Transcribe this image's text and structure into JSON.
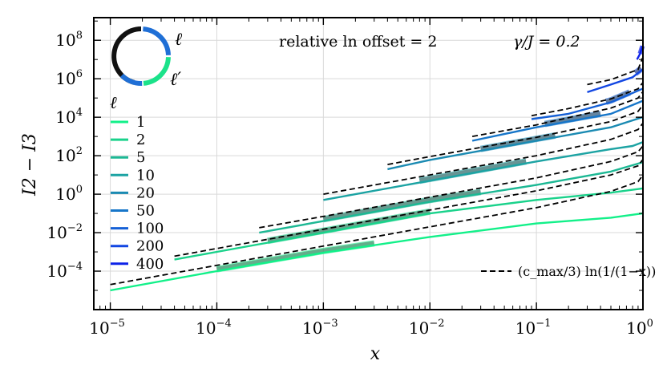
{
  "chart_data": {
    "type": "line",
    "xlabel": "x",
    "ylabel": "I2 − I3",
    "xscale": "log",
    "yscale": "log",
    "xlim": [
      7e-06,
      1.0
    ],
    "ylim": [
      1e-06,
      1500000000.0
    ],
    "grid": true,
    "annotation": "relative ln offset = 2",
    "gamma_label": "γ/J = 0.2",
    "x_ticks": [
      {
        "base": "10",
        "exp": "−5"
      },
      {
        "base": "10",
        "exp": "−4"
      },
      {
        "base": "10",
        "exp": "−3"
      },
      {
        "base": "10",
        "exp": "−2"
      },
      {
        "base": "10",
        "exp": "−1"
      },
      {
        "base": "10",
        "exp": "0"
      }
    ],
    "y_ticks": [
      {
        "base": "10",
        "exp": "−4"
      },
      {
        "base": "10",
        "exp": "−2"
      },
      {
        "base": "10",
        "exp": "0"
      },
      {
        "base": "10",
        "exp": "2"
      },
      {
        "base": "10",
        "exp": "4"
      },
      {
        "base": "10",
        "exp": "6"
      },
      {
        "base": "10",
        "exp": "8"
      }
    ],
    "legend_title": "ℓ",
    "legend_position": "left",
    "fit_legend": "(c_max/3) ln(1/(1−x))",
    "inset_labels": {
      "ell": "ℓ",
      "ell_prime": "ℓ′"
    },
    "series": [
      {
        "name": "1",
        "color": "#12f089",
        "x": [
          1e-05,
          0.0001,
          0.001,
          0.01,
          0.1,
          0.5,
          0.99
        ],
        "y": [
          1e-05,
          0.0001,
          0.0009,
          0.006,
          0.03,
          0.06,
          0.1
        ]
      },
      {
        "name": "2",
        "color": "#1ad28b",
        "x": [
          4e-05,
          0.0001,
          0.001,
          0.01,
          0.1,
          0.5,
          0.99
        ],
        "y": [
          0.0004,
          0.001,
          0.01,
          0.1,
          0.5,
          1.2,
          2
        ]
      },
      {
        "name": "5",
        "color": "#1cb894",
        "x": [
          0.00025,
          0.001,
          0.01,
          0.1,
          0.5,
          0.99
        ],
        "y": [
          0.01,
          0.04,
          0.4,
          3,
          15,
          45
        ]
      },
      {
        "name": "10",
        "color": "#1ca3a3",
        "x": [
          0.001,
          0.01,
          0.1,
          0.5,
          0.8,
          0.99
        ],
        "y": [
          0.5,
          5,
          50,
          220,
          320,
          500
        ]
      },
      {
        "name": "20",
        "color": "#1a8ab2",
        "x": [
          0.004,
          0.01,
          0.1,
          0.5,
          0.99
        ],
        "y": [
          20,
          60,
          600,
          3000,
          10000
        ]
      },
      {
        "name": "50",
        "color": "#1776c9",
        "x": [
          0.025,
          0.1,
          0.5,
          0.99
        ],
        "y": [
          600,
          3000,
          15000,
          70000
        ]
      },
      {
        "name": "100",
        "color": "#1560d6",
        "x": [
          0.09,
          0.2,
          0.5,
          0.99
        ],
        "y": [
          8000,
          15000,
          60000,
          300000
        ]
      },
      {
        "name": "200",
        "color": "#1246e2",
        "x": [
          0.3,
          0.5,
          0.8,
          0.99
        ],
        "y": [
          200000,
          500000,
          1200000,
          3000000
        ]
      },
      {
        "name": "400",
        "color": "#0d22e8",
        "x": [
          0.88,
          0.94,
          0.99
        ],
        "y": [
          10000000,
          20000000,
          50000000
        ]
      }
    ],
    "fits": [
      {
        "name": "1",
        "x": [
          1e-05,
          0.0001,
          0.001,
          0.01,
          0.1,
          0.5,
          0.9,
          0.99
        ],
        "y": [
          2e-05,
          0.0002,
          0.002,
          0.02,
          0.2,
          1.4,
          4.5,
          9
        ]
      },
      {
        "name": "2",
        "x": [
          4e-05,
          0.0001,
          0.001,
          0.01,
          0.1,
          0.5,
          0.9,
          0.99
        ],
        "y": [
          0.0006,
          0.0015,
          0.015,
          0.15,
          1.5,
          10,
          30,
          60
        ]
      },
      {
        "name": "5",
        "x": [
          0.00025,
          0.001,
          0.01,
          0.1,
          0.5,
          0.9,
          0.99
        ],
        "y": [
          0.018,
          0.07,
          0.7,
          7,
          50,
          160,
          300
        ]
      },
      {
        "name": "10",
        "x": [
          0.001,
          0.01,
          0.1,
          0.5,
          0.9,
          0.99
        ],
        "y": [
          1,
          10,
          100,
          700,
          2300,
          4600
        ]
      },
      {
        "name": "20",
        "x": [
          0.004,
          0.01,
          0.1,
          0.5,
          0.9,
          0.99
        ],
        "y": [
          35,
          90,
          900,
          6000,
          20000,
          40000
        ]
      },
      {
        "name": "50",
        "x": [
          0.025,
          0.1,
          0.5,
          0.9,
          0.99
        ],
        "y": [
          1000,
          4000,
          30000,
          100000,
          200000
        ]
      },
      {
        "name": "100",
        "x": [
          0.09,
          0.2,
          0.5,
          0.9,
          0.99
        ],
        "y": [
          12000,
          28000,
          90000,
          300000,
          600000
        ]
      },
      {
        "name": "200",
        "x": [
          0.3,
          0.5,
          0.9,
          0.99
        ],
        "y": [
          500000,
          900000,
          3000000,
          12000000
        ]
      }
    ],
    "fit_windows": [
      {
        "name": "1",
        "x": [
          0.0001,
          0.003
        ]
      },
      {
        "name": "2",
        "x": [
          0.0003,
          0.01
        ]
      },
      {
        "name": "5",
        "x": [
          0.001,
          0.03
        ]
      },
      {
        "name": "10",
        "x": [
          0.008,
          0.08
        ]
      },
      {
        "name": "20",
        "x": [
          0.03,
          0.15
        ]
      },
      {
        "name": "50",
        "x": [
          0.12,
          0.4
        ]
      },
      {
        "name": "100",
        "x": [
          0.45,
          0.75
        ]
      },
      {
        "name": "200",
        "x": [
          0.85,
          0.97
        ]
      }
    ]
  }
}
